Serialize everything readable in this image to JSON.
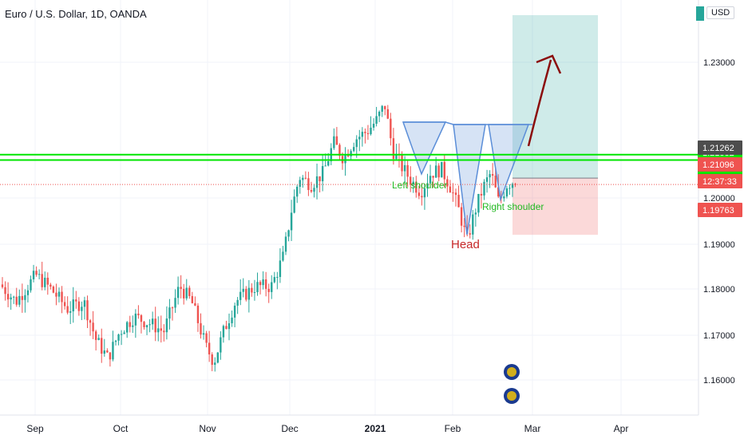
{
  "header": {
    "title": "Euro / U.S. Dollar, 1D, OANDA",
    "currency": "USD"
  },
  "chart_data": {
    "type": "candlestick",
    "title": "Euro / U.S. Dollar, 1D, OANDA",
    "ylim": [
      1.1563,
      1.2555
    ],
    "y_ticks": [
      "1.23000",
      "1.20000",
      "1.19000",
      "1.18000",
      "1.17000",
      "1.16000"
    ],
    "x_ticks": [
      "Sep",
      "Oct",
      "Nov",
      "Dec",
      "2021",
      "Feb",
      "Mar",
      "Apr"
    ],
    "grid": true,
    "colors": {
      "up": "#26a69a",
      "down": "#ef5350",
      "green_line": "#00e600",
      "arrow": "#8b0d0d",
      "pattern": "#5b8ed8"
    },
    "key_levels": [
      {
        "price": 1.21882,
        "label": "1.21882",
        "color": "#00e600"
      },
      {
        "price": 1.2174,
        "label": "1.21740",
        "color": "#00e600"
      }
    ],
    "price_labels": [
      {
        "price": 1.21262,
        "label": "1.21262",
        "color": "#4d4d4d"
      },
      {
        "price": 1.21096,
        "label": "1.21096",
        "color": "#ef5350"
      },
      {
        "label": "12:37:33",
        "color": "#ef5350"
      },
      {
        "price": 1.19763,
        "label": "1.19763",
        "color": "#ef5350"
      }
    ],
    "position": {
      "entry": 1.21262,
      "stop": 1.19763,
      "target": 1.253
    },
    "annotations": [
      {
        "text": "Left shoulder",
        "color": "#22b822"
      },
      {
        "text": "Head",
        "color": "#c62828"
      },
      {
        "text": "Right shoulder",
        "color": "#22b822"
      }
    ],
    "candles": []
  }
}
